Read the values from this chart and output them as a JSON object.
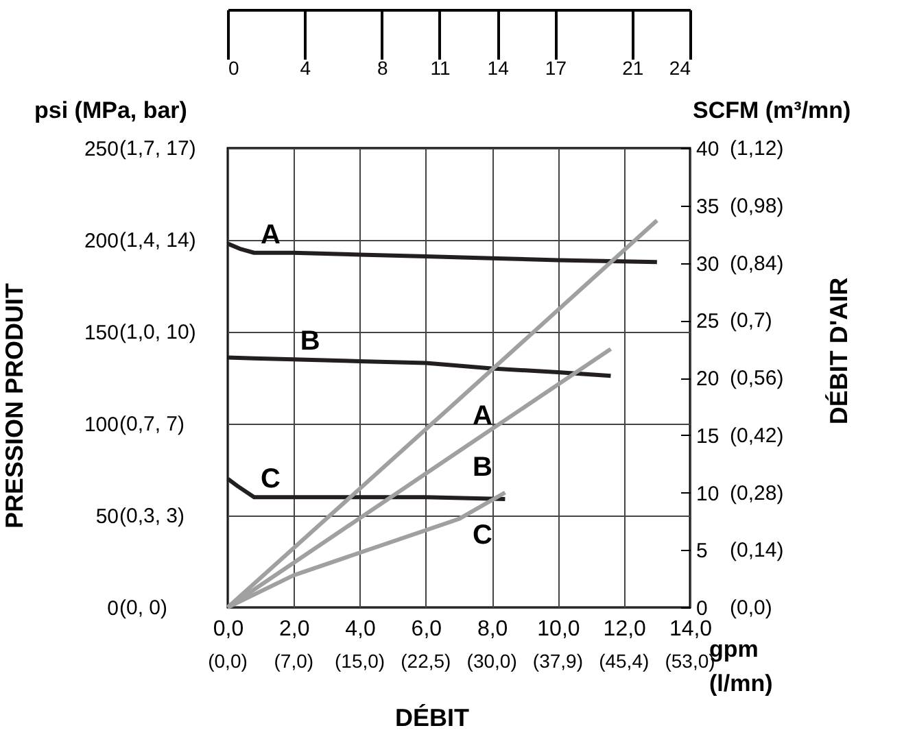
{
  "chart_data": {
    "type": "line",
    "xlabel": "DÉBIT",
    "ylabel": "PRESSION PRODUIT",
    "y2label": "DÉBIT D'AIR",
    "annotations": [
      "psi (MPa, bar)",
      "SCFM (m³/mn)",
      "gpm",
      "(l/mn)",
      "(0, 0)",
      "(0,3, 3)",
      "(0,7, 7)",
      "(1,0, 10)",
      "(1,4, 14)",
      "(1,7, 17)",
      "(0,0)",
      "(0,14)",
      "(0,28)",
      "(0,42)",
      "(0,56)",
      "(0,7)",
      "(0,84)",
      "(0,98)",
      "(1,12)",
      "(0,0)",
      "(7,0)",
      "(15,0)",
      "(22,5)",
      "(30,0)",
      "(37,9)",
      "(45,4)",
      "(53,0)"
    ],
    "xlim": [
      0,
      14
    ],
    "xticks": [
      {
        "value": 0,
        "label": "0,0"
      },
      {
        "value": 2,
        "label": "2,0"
      },
      {
        "value": 4,
        "label": "4,0"
      },
      {
        "value": 6,
        "label": "6,0"
      },
      {
        "value": 8,
        "label": "8,0"
      },
      {
        "value": 10,
        "label": "10,0"
      },
      {
        "value": 12,
        "label": "12,0"
      },
      {
        "value": 14,
        "label": "14,0"
      }
    ],
    "x2lim": [
      0,
      24
    ],
    "x2ticks": [
      0,
      4,
      8,
      11,
      14,
      17,
      21,
      24
    ],
    "ylim": [
      0,
      250
    ],
    "yticks": [
      0,
      50,
      100,
      150,
      200,
      250
    ],
    "y2lim": [
      0,
      40
    ],
    "y2ticks": [
      0,
      5,
      10,
      15,
      20,
      25,
      30,
      35,
      40
    ],
    "grid": true,
    "line_style": "solid",
    "series": [
      {
        "name": "A",
        "color": "#231f20",
        "x": [
          0,
          0.4,
          0.8,
          2,
          4,
          6,
          8,
          10,
          13
        ],
        "values": [
          198,
          195,
          193,
          193,
          192,
          191,
          190,
          189,
          188
        ]
      },
      {
        "name": "B",
        "color": "#231f20",
        "x": [
          0,
          0.8,
          2,
          4,
          6,
          8,
          10,
          11.6
        ],
        "values": [
          136,
          135.5,
          135,
          134,
          133,
          130,
          128,
          126
        ]
      },
      {
        "name": "C",
        "color": "#231f20",
        "x": [
          0,
          0.3,
          0.8,
          2,
          4,
          6,
          8.4
        ],
        "values": [
          70,
          66,
          60,
          60,
          60,
          60,
          59
        ]
      },
      {
        "name": "A",
        "color": "#a0a0a0",
        "axis": "y2",
        "x": [
          0,
          7,
          13
        ],
        "values": [
          0,
          18.1,
          33.7
        ]
      },
      {
        "name": "B",
        "color": "#a0a0a0",
        "axis": "y2",
        "x": [
          0,
          7,
          11.6
        ],
        "values": [
          0,
          13.6,
          22.5
        ]
      },
      {
        "name": "C",
        "color": "#a0a0a0",
        "axis": "y2",
        "x": [
          0,
          2,
          7,
          8.4
        ],
        "values": [
          0,
          2.8,
          7.7,
          10
        ]
      }
    ]
  }
}
